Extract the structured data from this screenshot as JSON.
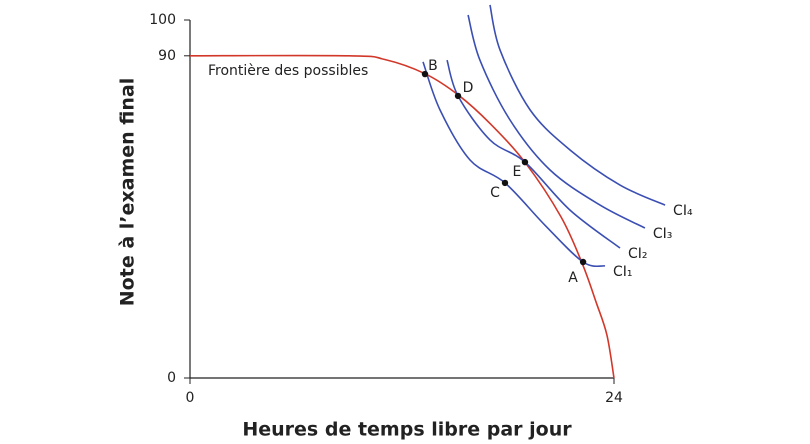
{
  "chart_data": {
    "type": "line",
    "xlabel": "Heures de temps libre par jour",
    "ylabel": "Note à l’examen final",
    "xlim": [
      0,
      24
    ],
    "ylim": [
      0,
      100
    ],
    "xticks": [
      0,
      24
    ],
    "yticks": [
      0,
      90,
      100
    ],
    "series": [
      {
        "name": "Frontière des possibles",
        "color": "#d2382a",
        "x": [
          0,
          9,
          11,
          13.3,
          15.2,
          17,
          19,
          21,
          22.2,
          23,
          23.6,
          24
        ],
        "values": [
          90,
          90,
          89,
          85,
          79,
          71,
          60,
          45,
          32,
          21,
          12,
          0
        ]
      },
      {
        "name": "CI₁",
        "color": "#3b4fb3",
        "x": [
          13.19,
          14.15,
          15.85,
          17.83,
          20.09,
          22.25,
          23.49
        ],
        "values": [
          88.3,
          74.9,
          60.9,
          54.5,
          42.7,
          32.4,
          31.3
        ]
      },
      {
        "name": "CI₂",
        "color": "#3b4fb3",
        "x": [
          14.55,
          15.17,
          16.98,
          18.96,
          21.51,
          24.34
        ],
        "values": [
          88.8,
          78.8,
          66.5,
          60.3,
          46.9,
          36.3
        ]
      },
      {
        "name": "CI₃",
        "color": "#3b4fb3",
        "x": [
          15.74,
          16.41,
          18.11,
          20.38,
          23.21,
          25.75
        ],
        "values": [
          101.4,
          88.8,
          72.1,
          58.1,
          48.3,
          41.9
        ]
      },
      {
        "name": "CI₄",
        "color": "#3b4fb3",
        "x": [
          16.98,
          17.55,
          19.25,
          21.51,
          24.34,
          26.89
        ],
        "values": [
          104.2,
          91.6,
          74.9,
          63.7,
          53.9,
          48.3
        ]
      }
    ],
    "points": [
      {
        "label": "A",
        "x": 22.25,
        "y": 32.4
      },
      {
        "label": "B",
        "x": 13.3,
        "y": 84.9
      },
      {
        "label": "C",
        "x": 17.83,
        "y": 54.5
      },
      {
        "label": "D",
        "x": 15.17,
        "y": 78.8
      },
      {
        "label": "E",
        "x": 18.96,
        "y": 60.3
      }
    ]
  }
}
